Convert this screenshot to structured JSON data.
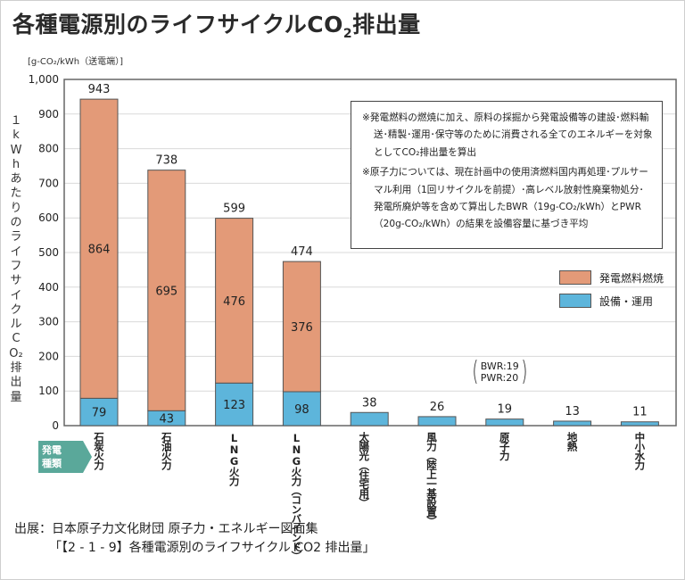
{
  "title_main": "各種電源別のライフサイクルCO",
  "title_sub": "2",
  "title_end": "排出量",
  "unit": "[g-CO₂/kWh（送電端）]",
  "y_axis_label": "１kWhあたりのライフサイクルCO₂排出量",
  "notes": [
    "※発電燃料の燃焼に加え、原料の採掘から発電設備等の建設･燃料輸送･精製･運用･保守等のために消費される全てのエネルギーを対象としてCO₂排出量を算出",
    "※原子力については、現在計画中の使用済燃料国内再処理･プルサーマル利用（1回リサイクルを前提）･高レベル放射性廃棄物処分･発電所廃炉等を含めて算出したBWR（19g-CO₂/kWh）とPWR（20g-CO₂/kWh）の結果を設備容量に基づき平均"
  ],
  "legend": [
    {
      "label": "発電燃料燃焼",
      "color": "#e39a78"
    },
    {
      "label": "設備・運用",
      "color": "#5db5db"
    }
  ],
  "bwr_annotation": {
    "line1": "BWR:19",
    "line2": "PWR:20"
  },
  "category_badge": {
    "line1": "発電",
    "line2": "種類",
    "color": "#5aa89a"
  },
  "source": {
    "line1": "出展：日本原子力文化財団 原子力・エネルギー図面集",
    "line2": "「【2 - 1 - 9】各種電源別のライフサイクル CO2 排出量」"
  },
  "chart_data": {
    "type": "bar",
    "stacked": true,
    "title": "各種電源別のライフサイクルCO2排出量",
    "xlabel": "発電種類",
    "ylabel": "1kWhあたりのライフサイクルCO2排出量",
    "unit": "g-CO2/kWh（送電端）",
    "ylim": [
      0,
      1000
    ],
    "yticks": [
      0,
      100,
      200,
      300,
      400,
      500,
      600,
      700,
      800,
      900,
      1000
    ],
    "ytick_labels": [
      "0",
      "100",
      "200",
      "300",
      "400",
      "500",
      "600",
      "700",
      "800",
      "900",
      "1,000"
    ],
    "grid": true,
    "legend_position": "right",
    "categories": [
      {
        "main": "石炭火力",
        "sub": ""
      },
      {
        "main": "石油火力",
        "sub": ""
      },
      {
        "main": "LNG火力",
        "sub": ""
      },
      {
        "main": "LNG火力",
        "sub": "（コンバインド）"
      },
      {
        "main": "太陽光",
        "sub": "（住宅用）"
      },
      {
        "main": "風力",
        "sub": "（陸上一基設置）"
      },
      {
        "main": "原子力",
        "sub": ""
      },
      {
        "main": "地熱",
        "sub": ""
      },
      {
        "main": "中小水力",
        "sub": ""
      }
    ],
    "series": [
      {
        "name": "設備・運用",
        "color": "#5db5db",
        "values": [
          79,
          43,
          123,
          98,
          38,
          26,
          19,
          13,
          11
        ]
      },
      {
        "name": "発電燃料燃焼",
        "color": "#e39a78",
        "values": [
          864,
          695,
          476,
          376,
          0,
          0,
          0,
          0,
          0
        ]
      }
    ],
    "totals": [
      943,
      738,
      599,
      474,
      38,
      26,
      19,
      13,
      11
    ]
  }
}
